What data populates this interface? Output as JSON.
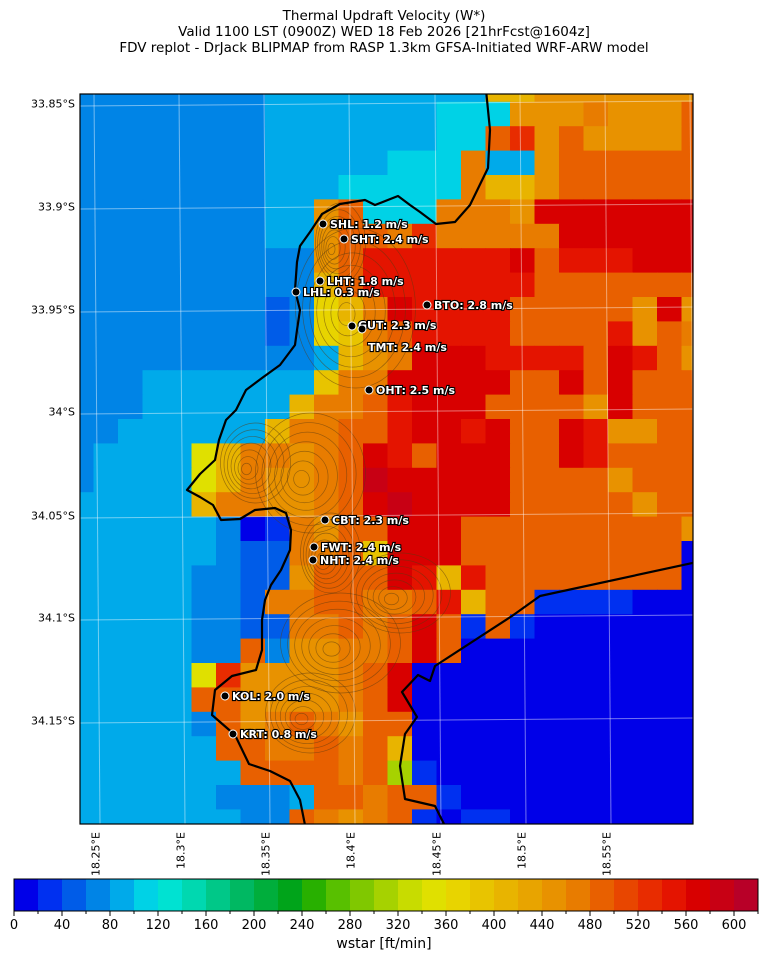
{
  "title": {
    "line1": "Thermal Updraft Velocity (W*)",
    "line2": "Valid 1100 LST (0900Z) WED 18 Feb 2026 [21hrFcst@1604z]",
    "line3": "FDV replot - DrJack BLIPMAP from RASP 1.3km GFSA-Initiated WRF-ARW model"
  },
  "axes": {
    "lat_ticks": [
      "33.85°S",
      "33.9°S",
      "33.95°S",
      "34°S",
      "34.05°S",
      "34.1°S",
      "34.15°S"
    ],
    "lon_ticks": [
      "18.25°E",
      "18.3°E",
      "18.35°E",
      "18.4°E",
      "18.45°E",
      "18.5°E",
      "18.55°E"
    ]
  },
  "stations": [
    {
      "label": "SHL: 1.2 m/s"
    },
    {
      "label": "SHT: 2.4 m/s"
    },
    {
      "label": "LHT: 1.8 m/s"
    },
    {
      "label": "LHL: 0.3 m/s"
    },
    {
      "label": "BTO: 2.8 m/s"
    },
    {
      "label": "GUT: 2.3 m/s"
    },
    {
      "label": "TMT: 2.4 m/s"
    },
    {
      "label": "OHT: 2.5 m/s"
    },
    {
      "label": "CBT: 2.3 m/s"
    },
    {
      "label": "FWT: 2.4 m/s"
    },
    {
      "label": "NHT: 2.4 m/s"
    },
    {
      "label": "KOL: 2.0 m/s"
    },
    {
      "label": "KRT: 0.8 m/s"
    }
  ],
  "colorbar": {
    "label": "wstar [ft/min]",
    "min": 0,
    "max": 620,
    "step": 20,
    "tick_labels": [
      "0",
      "40",
      "80",
      "120",
      "160",
      "200",
      "240",
      "280",
      "320",
      "360",
      "400",
      "440",
      "480",
      "520",
      "560",
      "600"
    ],
    "colors": [
      "#0000e8",
      "#0030f0",
      "#005ce8",
      "#0084e6",
      "#00aaea",
      "#00d2e6",
      "#00e2d2",
      "#00d8b0",
      "#00c888",
      "#00b862",
      "#00ae3c",
      "#00a41a",
      "#28b000",
      "#58c000",
      "#80c800",
      "#a6d200",
      "#c8dc00",
      "#e0e000",
      "#e8d400",
      "#e8c400",
      "#e8b400",
      "#e8a400",
      "#e89200",
      "#e87c00",
      "#e86000",
      "#e84600",
      "#e82c00",
      "#e41400",
      "#d80000",
      "#c80014",
      "#b80028"
    ]
  },
  "chart_data": {
    "type": "heatmap",
    "variable": "wstar [ft/min]",
    "bin_code_alphabet": "abcdefghijklmnopqrstuvwxyzABCDE",
    "rows": [
      "ddddddddeeeeeeeeeuuwwwwwww",
      "ddddddddeeeeeeefffwwwxwwwy",
      "ddddddddeeeeeeeffyAwywwwwy",
      "ddddddddeeeeefffxeewyyyyyy",
      "ddddddddeeefffffxuuwyyyyyy",
      "ddddddddeewyfffxxxwCCCCCCC",
      "ddddddddeewyyxAxxxxxCCCCCC",
      "ddddddddddwyBBBBBBCyBBBCCC",
      "dddddddddduyBBBBBBByyyyyyy",
      "ddddddddcdsuxCBBBByyyyywCw",
      "ddddddddcdstxyBBBByyyyBwyx",
      "ddddddddddeuwxCCCBBBByCByw",
      "dddeeeeeeetxxCCCCCyyCyCyyy",
      "dddeeeeeeuxxyBCCCyyyywCyyy",
      "ddeeeeeeuxxyyBCCBCyyCBwwyy",
      "deeeeruxxwxyCByCCCyyCByyyy",
      "deeeeruxwwxyDCCCCCyyyywyyy",
      "eeeeeuxxwwxyCDCCCCyyyyywyy",
      "eeeeeedabxwyyCCCyyyyyyyyyw",
      "eeeeeedccxxytCCCyyyyyyyyya",
      "eeeeeddccwyyyCBuByyyyyyyya",
      "eeeeeddcxxyyxxyBuyybbbbaaa",
      "eeeeeddccxxyxyCybybaaaaaaa",
      "eeeeeddydwwxxyCyaaaaaaaaaa",
      "eeeeerAwwwwxyCaaaaaaaaaaaa",
      "eeeeeyywwwwxyCaaaaaaaaaaaa",
      "eeeeedywxyxwyyaaaaaaaaaaaa",
      "eeeeeeyyxxyxyuaaaaaaaaaaaa",
      "eeeeeeeyyyyxypbaaaaaaaaaaa",
      "eeeeeedddeyyxyybaaaaaaaaaa",
      "eeeeeeeddyxwxybabbaaaaaaaa"
    ]
  }
}
